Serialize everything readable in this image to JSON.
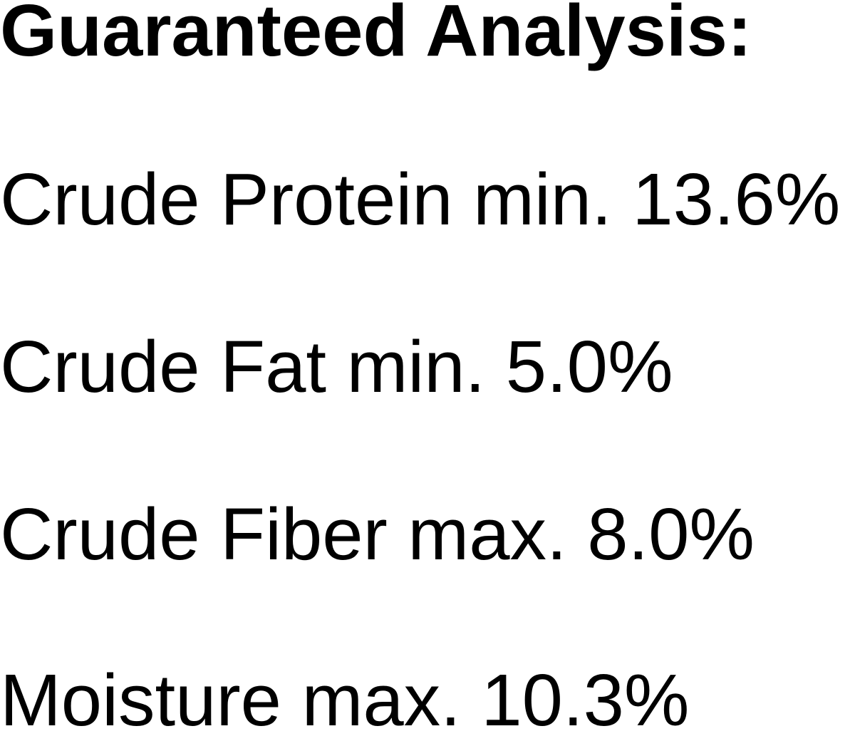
{
  "title": "Guaranteed Analysis:",
  "items": [
    {
      "text": "Crude Protein min. 13.6%"
    },
    {
      "text": "Crude Fat min. 5.0%"
    },
    {
      "text": "Crude Fiber max. 8.0%"
    },
    {
      "text": "Moisture max. 10.3%"
    }
  ]
}
